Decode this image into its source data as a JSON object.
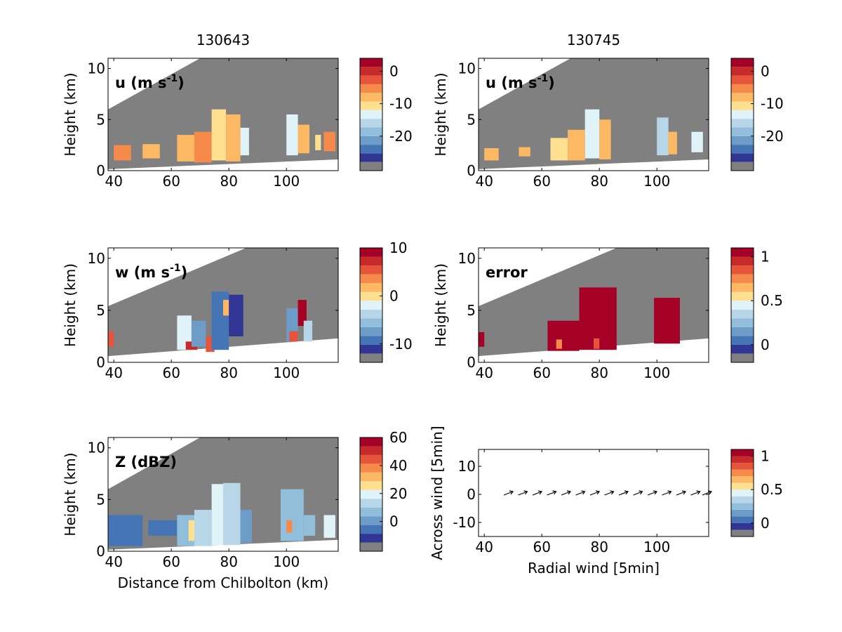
{
  "column_titles": [
    "130643",
    "130745"
  ],
  "colors": {
    "background": "#808080",
    "scale": [
      "#313695",
      "#4575b4",
      "#6d9cc8",
      "#91bfdb",
      "#b7d7e8",
      "#e0f3f8",
      "#fee090",
      "#fdb863",
      "#f58a4b",
      "#e6553a",
      "#c62a2a",
      "#a50026"
    ]
  },
  "chart_data": [
    {
      "id": "u1",
      "type": "heatmap",
      "panel_label": "u (m s",
      "panel_label_sup": "-1",
      "ylabel": "Height (km)",
      "xlabel": "",
      "xlim": [
        38,
        118
      ],
      "ylim": [
        0,
        11
      ],
      "xticks": [
        "40",
        "60",
        "80",
        "100"
      ],
      "yticks": [
        "0",
        "5",
        "10"
      ],
      "cbar_ticks": [
        "0",
        "-10",
        "-20"
      ],
      "cbar_range": [
        -28,
        4
      ],
      "cells": [
        {
          "x": [
            40,
            46
          ],
          "y": [
            1,
            2.5
          ],
          "v": -6
        },
        {
          "x": [
            50,
            56
          ],
          "y": [
            1.2,
            2.6
          ],
          "v": -7
        },
        {
          "x": [
            62,
            68
          ],
          "y": [
            0.9,
            3.5
          ],
          "v": -7
        },
        {
          "x": [
            68,
            74
          ],
          "y": [
            0.8,
            3.8
          ],
          "v": -5
        },
        {
          "x": [
            74,
            79
          ],
          "y": [
            1,
            6
          ],
          "v": -12
        },
        {
          "x": [
            79,
            84
          ],
          "y": [
            0.9,
            5.5
          ],
          "v": -8
        },
        {
          "x": [
            84,
            87
          ],
          "y": [
            1.5,
            4.2
          ],
          "v": -14
        },
        {
          "x": [
            100,
            104
          ],
          "y": [
            1.5,
            5.5
          ],
          "v": -14
        },
        {
          "x": [
            104,
            108
          ],
          "y": [
            1.7,
            4.5
          ],
          "v": -8
        },
        {
          "x": [
            110,
            112
          ],
          "y": [
            2,
            3.5
          ],
          "v": -10
        },
        {
          "x": [
            113,
            117
          ],
          "y": [
            1.9,
            3.8
          ],
          "v": -6
        }
      ]
    },
    {
      "id": "u2",
      "type": "heatmap",
      "panel_label": "u (m s",
      "panel_label_sup": "-1",
      "ylabel": "Height (km)",
      "xlabel": "",
      "xlim": [
        38,
        118
      ],
      "ylim": [
        0,
        11
      ],
      "xticks": [
        "40",
        "60",
        "80",
        "100"
      ],
      "yticks": [
        "0",
        "5",
        "10"
      ],
      "cbar_ticks": [
        "0",
        "-10",
        "-20"
      ],
      "cbar_range": [
        -28,
        4
      ],
      "cells": [
        {
          "x": [
            40,
            45
          ],
          "y": [
            1,
            2.2
          ],
          "v": -8
        },
        {
          "x": [
            52,
            56
          ],
          "y": [
            1.4,
            2.3
          ],
          "v": -7
        },
        {
          "x": [
            63,
            69
          ],
          "y": [
            1,
            3.2
          ],
          "v": -12
        },
        {
          "x": [
            69,
            75
          ],
          "y": [
            1,
            4
          ],
          "v": -7
        },
        {
          "x": [
            75,
            80
          ],
          "y": [
            1.2,
            6
          ],
          "v": -14
        },
        {
          "x": [
            80,
            84
          ],
          "y": [
            1.1,
            5
          ],
          "v": -9
        },
        {
          "x": [
            100,
            104
          ],
          "y": [
            1.5,
            5.2
          ],
          "v": -15
        },
        {
          "x": [
            104,
            107
          ],
          "y": [
            1.6,
            3.8
          ],
          "v": -7
        },
        {
          "x": [
            112,
            116
          ],
          "y": [
            1.8,
            3.8
          ],
          "v": -14
        }
      ]
    },
    {
      "id": "w",
      "type": "heatmap",
      "panel_label": "w (m s",
      "panel_label_sup": "-1",
      "ylabel": "Height (km)",
      "xlabel": "",
      "xlim": [
        38,
        118
      ],
      "ylim": [
        0,
        11
      ],
      "xticks": [
        "40",
        "60",
        "80",
        "100"
      ],
      "yticks": [
        "0",
        "5",
        "10"
      ],
      "cbar_ticks": [
        "10",
        "0",
        "-10"
      ],
      "cbar_range": [
        -12,
        10
      ],
      "cells": [
        {
          "x": [
            38,
            40
          ],
          "y": [
            1.5,
            3
          ],
          "v": 6
        },
        {
          "x": [
            62,
            67
          ],
          "y": [
            1.2,
            4.5
          ],
          "v": -2
        },
        {
          "x": [
            65,
            69
          ],
          "y": [
            1.2,
            2
          ],
          "v": 8
        },
        {
          "x": [
            67,
            72
          ],
          "y": [
            1.5,
            4
          ],
          "v": -8
        },
        {
          "x": [
            72,
            75
          ],
          "y": [
            1,
            2.5
          ],
          "v": 5
        },
        {
          "x": [
            74,
            80
          ],
          "y": [
            1.2,
            6.8
          ],
          "v": -10
        },
        {
          "x": [
            78,
            80
          ],
          "y": [
            4.5,
            6
          ],
          "v": 2
        },
        {
          "x": [
            80,
            85
          ],
          "y": [
            2.5,
            6.5
          ],
          "v": -11
        },
        {
          "x": [
            100,
            104
          ],
          "y": [
            2,
            5.2
          ],
          "v": -7
        },
        {
          "x": [
            101,
            104
          ],
          "y": [
            2,
            3
          ],
          "v": 6
        },
        {
          "x": [
            104,
            107
          ],
          "y": [
            3.5,
            6
          ],
          "v": 9
        },
        {
          "x": [
            106,
            109
          ],
          "y": [
            2,
            4
          ],
          "v": -3
        }
      ]
    },
    {
      "id": "err",
      "type": "heatmap",
      "panel_label": "error",
      "panel_label_sup": "",
      "ylabel": "Height (km)",
      "xlabel": "",
      "xlim": [
        38,
        118
      ],
      "ylim": [
        0,
        11
      ],
      "xticks": [
        "40",
        "60",
        "80",
        "100"
      ],
      "yticks": [
        "0",
        "5",
        "10"
      ],
      "cbar_ticks": [
        "1",
        "0.5",
        "0"
      ],
      "cbar_range": [
        -0.1,
        1.1
      ],
      "cells": [
        {
          "x": [
            38,
            40
          ],
          "y": [
            1.5,
            2.9
          ],
          "v": 1.05
        },
        {
          "x": [
            62,
            73
          ],
          "y": [
            1.1,
            4
          ],
          "v": 1.05
        },
        {
          "x": [
            73,
            86
          ],
          "y": [
            1.2,
            7.2
          ],
          "v": 1.05
        },
        {
          "x": [
            65,
            67
          ],
          "y": [
            1.3,
            2.2
          ],
          "v": 0.8
        },
        {
          "x": [
            78,
            80
          ],
          "y": [
            1.3,
            2.3
          ],
          "v": 0.85
        },
        {
          "x": [
            99,
            108
          ],
          "y": [
            1.8,
            6.2
          ],
          "v": 1.05
        }
      ]
    },
    {
      "id": "Z",
      "type": "heatmap",
      "panel_label": "Z (dBZ)",
      "panel_label_sup": "",
      "ylabel": "Height (km)",
      "xlabel": "Distance from Chilbolton (km)",
      "xlim": [
        38,
        118
      ],
      "ylim": [
        0,
        11
      ],
      "xticks": [
        "40",
        "60",
        "80",
        "100"
      ],
      "yticks": [
        "0",
        "5",
        "10"
      ],
      "cbar_ticks": [
        "60",
        "40",
        "20",
        "0"
      ],
      "cbar_range": [
        -15,
        60
      ],
      "cells": [
        {
          "x": [
            38,
            50
          ],
          "y": [
            0.5,
            3.5
          ],
          "v": -8
        },
        {
          "x": [
            52,
            62
          ],
          "y": [
            1.5,
            3
          ],
          "v": -8
        },
        {
          "x": [
            62,
            68
          ],
          "y": [
            0.5,
            3.5
          ],
          "v": 5
        },
        {
          "x": [
            66,
            68
          ],
          "y": [
            1,
            3
          ],
          "v": 25
        },
        {
          "x": [
            68,
            74
          ],
          "y": [
            0.5,
            4
          ],
          "v": 12
        },
        {
          "x": [
            74,
            78
          ],
          "y": [
            0.6,
            6.5
          ],
          "v": 20
        },
        {
          "x": [
            78,
            84
          ],
          "y": [
            0.6,
            6.6
          ],
          "v": 15
        },
        {
          "x": [
            84,
            88
          ],
          "y": [
            0.8,
            4
          ],
          "v": 2
        },
        {
          "x": [
            98,
            106
          ],
          "y": [
            1,
            6
          ],
          "v": 8
        },
        {
          "x": [
            100,
            102
          ],
          "y": [
            1.8,
            3
          ],
          "v": 35
        },
        {
          "x": [
            106,
            110
          ],
          "y": [
            1.5,
            3.5
          ],
          "v": 5
        },
        {
          "x": [
            113,
            117
          ],
          "y": [
            1.3,
            3.5
          ],
          "v": 18
        }
      ]
    },
    {
      "id": "vec",
      "type": "scatter",
      "panel_label": "",
      "panel_label_sup": "",
      "ylabel": "Across wind [5min]",
      "xlabel": "Radial wind [5min]",
      "xlim": [
        38,
        118
      ],
      "ylim": [
        -15,
        16
      ],
      "xticks": [
        "40",
        "60",
        "80",
        "100"
      ],
      "yticks": [
        "-10",
        "0",
        "10"
      ],
      "cbar_ticks": [
        "1",
        "0.5",
        "0"
      ],
      "cbar_range": [
        -0.1,
        1.1
      ],
      "arrows_x": [
        48,
        53,
        58,
        63,
        68,
        73,
        78,
        83,
        88,
        93,
        98,
        103,
        108,
        113,
        117
      ]
    }
  ]
}
